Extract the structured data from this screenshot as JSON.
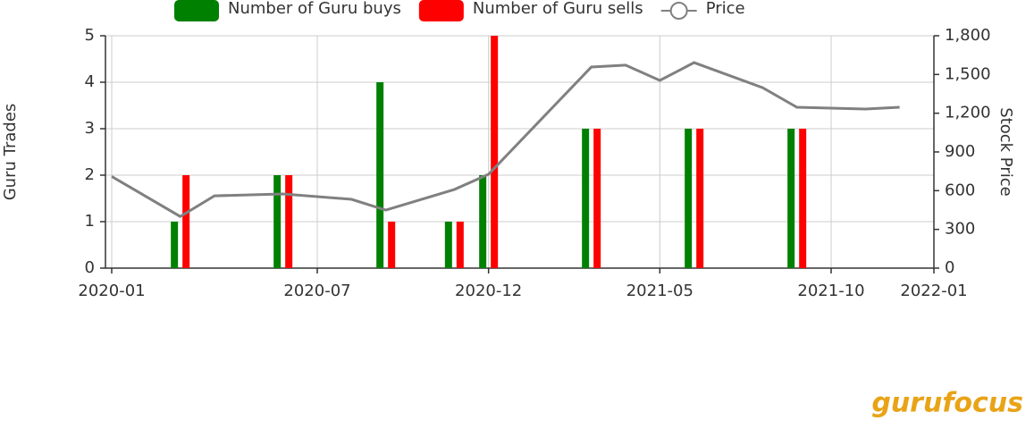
{
  "chart_data": {
    "type": "bar",
    "y_label": "Guru Trades",
    "y2_label": "Stock Price",
    "xlim": [
      "2020-01",
      "2022-01"
    ],
    "xticks": [
      "2020-01",
      "2020-07",
      "2020-12",
      "2021-05",
      "2021-10",
      "2022-01"
    ],
    "ylim": [
      0,
      5
    ],
    "yticks": [
      0,
      1,
      2,
      3,
      4,
      5
    ],
    "y2lim": [
      0,
      1800
    ],
    "y2ticks": [
      0,
      300,
      600,
      900,
      {
        "value": 1200,
        "label": "1,200"
      },
      {
        "value": 1500,
        "label": "1,500"
      },
      {
        "value": 1800,
        "label": "1,800"
      }
    ],
    "grid": true,
    "series": [
      {
        "name": "Number of Guru buys",
        "color": "#008000",
        "type": "bar",
        "x": [
          "2020-03",
          "2020-06",
          "2020-09",
          "2020-11",
          "2020-12",
          "2021-03",
          "2021-06",
          "2021-09"
        ],
        "values": [
          1,
          2,
          4,
          1,
          2,
          3,
          3,
          3
        ]
      },
      {
        "name": "Number of Guru sells",
        "color": "#ff0000",
        "type": "bar",
        "x": [
          "2020-03",
          "2020-06",
          "2020-09",
          "2020-11",
          "2020-12",
          "2021-03",
          "2021-06",
          "2021-09"
        ],
        "values": [
          2,
          2,
          1,
          1,
          5,
          3,
          3,
          3
        ]
      },
      {
        "name": "Price",
        "color": "#808080",
        "type": "line",
        "axis": "y2",
        "x": [
          "2020-01",
          "2020-03",
          "2020-04",
          "2020-06",
          "2020-08",
          "2020-09",
          "2020-11",
          "2020-12",
          "2021-03",
          "2021-04",
          "2021-05",
          "2021-06",
          "2021-08",
          "2021-09",
          "2021-11",
          "2021-12"
        ],
        "values": [
          710,
          400,
          560,
          575,
          533,
          450,
          609,
          727,
          1558,
          1572,
          1454,
          1592,
          1398,
          1246,
          1232,
          1246
        ]
      }
    ],
    "watermark": "gurufocus"
  }
}
